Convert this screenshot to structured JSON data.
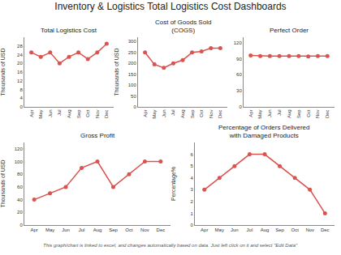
{
  "title": "Inventory & Logistics Total Logistics Cost Dashboards",
  "annotations": [
    {
      "text": "This graph/chart is linked to excel, and changes automatically based on data. Just left click on it and select \"Edit Data\""
    }
  ],
  "chart_data": [
    {
      "type": "line",
      "title": "Total Logistics Cost",
      "ylabel": "Thousands of USD",
      "categories": [
        "Apr",
        "May",
        "Jun",
        "Jul",
        "Aug",
        "Sep",
        "Oct",
        "Nov",
        "Dec"
      ],
      "values": [
        25,
        23,
        25,
        20,
        23,
        25,
        22,
        25,
        29
      ],
      "color": "#d9534f",
      "marker": "circle",
      "ylim": [
        0,
        32
      ],
      "yticks": [
        0,
        4,
        8,
        12,
        16,
        20,
        24,
        28
      ],
      "grid": false
    },
    {
      "type": "line",
      "title": "Cost of Goods Sold\n(COGS)",
      "ylabel": "Thousands of USD",
      "categories": [
        "Apr",
        "May",
        "Jun",
        "Jul",
        "Aug",
        "Sep",
        "Oct",
        "Nov",
        "Dec"
      ],
      "values": [
        250,
        195,
        180,
        200,
        215,
        250,
        255,
        270,
        270
      ],
      "color": "#d9534f",
      "marker": "circle",
      "ylim": [
        0,
        320
      ],
      "yticks": [
        0,
        50,
        100,
        150,
        200,
        250,
        300
      ],
      "grid": false
    },
    {
      "type": "line",
      "title": "Perfect Order",
      "categories": [
        "Apr",
        "May",
        "Jun",
        "Jul",
        "Aug",
        "Sep",
        "Oct",
        "Nov",
        "Dec"
      ],
      "values": [
        96,
        95,
        95,
        95,
        95,
        95,
        94,
        95,
        95
      ],
      "color": "#d9534f",
      "marker": "circle",
      "ylim": [
        0,
        130
      ],
      "yticks": [
        0,
        30,
        60,
        90,
        120
      ],
      "grid": false
    },
    {
      "type": "line",
      "title": "Gross Profit",
      "ylabel": "Thousands of USD",
      "categories": [
        "Apr",
        "May",
        "Jun",
        "Jul",
        "Aug",
        "Sep",
        "Oct",
        "Nov",
        "Dec"
      ],
      "values": [
        40,
        50,
        60,
        90,
        100,
        60,
        80,
        100,
        100
      ],
      "color": "#d9534f",
      "marker": "circle",
      "ylim": [
        0,
        130
      ],
      "yticks": [
        0,
        20,
        40,
        60,
        80,
        100,
        120
      ],
      "grid": false
    },
    {
      "type": "line",
      "title": "Percentage of Orders Delivered\nwith Damaged Products",
      "ylabel": "Percentage%",
      "categories": [
        "Apr",
        "May",
        "Jun",
        "Jul",
        "Aug",
        "Sep",
        "Oct",
        "Nov",
        "Dec"
      ],
      "values": [
        3,
        4,
        5,
        6,
        6,
        5,
        4,
        3,
        1
      ],
      "color": "#d9534f",
      "marker": "circle",
      "ylim": [
        0,
        7
      ],
      "yticks": [
        0,
        1,
        2,
        3,
        4,
        5,
        6
      ],
      "grid": false
    }
  ]
}
